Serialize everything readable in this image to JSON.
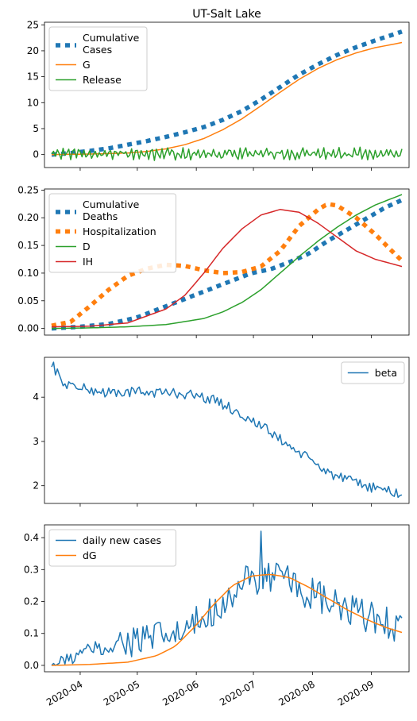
{
  "chart_data": [
    {
      "type": "line",
      "title": "UT-Salt Lake",
      "xlabel": "",
      "ylabel": "",
      "ylim": [
        -2.5,
        25.5
      ],
      "yticks": [
        0,
        5,
        10,
        15,
        20,
        25
      ],
      "legend_position": "upper-left",
      "series": [
        {
          "name": "Cumulative\nCases",
          "style": "dotted-thick",
          "color": "#1f77b4",
          "points": [
            [
              0,
              0
            ],
            [
              10,
              0.3
            ],
            [
              20,
              0.7
            ],
            [
              30,
              1.2
            ],
            [
              40,
              1.9
            ],
            [
              50,
              2.6
            ],
            [
              60,
              3.4
            ],
            [
              70,
              4.3
            ],
            [
              80,
              5.3
            ],
            [
              90,
              6.7
            ],
            [
              100,
              8.4
            ],
            [
              110,
              10.6
            ],
            [
              120,
              13.0
            ],
            [
              130,
              15.4
            ],
            [
              140,
              17.4
            ],
            [
              150,
              19.2
            ],
            [
              160,
              20.7
            ],
            [
              170,
              22.0
            ],
            [
              180,
              23.2
            ],
            [
              184,
              23.7
            ]
          ]
        },
        {
          "name": "G",
          "style": "solid",
          "color": "#ff7f0e",
          "points": [
            [
              0,
              0
            ],
            [
              20,
              0.1
            ],
            [
              40,
              0.3
            ],
            [
              50,
              0.6
            ],
            [
              60,
              1.1
            ],
            [
              70,
              1.9
            ],
            [
              80,
              3.1
            ],
            [
              90,
              4.8
            ],
            [
              100,
              6.9
            ],
            [
              110,
              9.4
            ],
            [
              120,
              12.0
            ],
            [
              130,
              14.5
            ],
            [
              140,
              16.6
            ],
            [
              150,
              18.3
            ],
            [
              160,
              19.6
            ],
            [
              170,
              20.6
            ],
            [
              180,
              21.3
            ],
            [
              184,
              21.6
            ]
          ]
        },
        {
          "name": "Release",
          "style": "solid",
          "color": "#2ca02c",
          "generated": "noise",
          "center": 0.15,
          "amplitude": 1.1,
          "n": 185
        }
      ]
    },
    {
      "type": "line",
      "title": "",
      "ylim": [
        -0.012,
        0.252
      ],
      "yticks": [
        0.0,
        0.05,
        0.1,
        0.15,
        0.2,
        0.25
      ],
      "legend_position": "upper-left",
      "series": [
        {
          "name": "Cumulative\nDeaths",
          "style": "dotted-thick",
          "color": "#1f77b4",
          "points": [
            [
              0,
              0
            ],
            [
              15,
              0.003
            ],
            [
              30,
              0.008
            ],
            [
              45,
              0.02
            ],
            [
              60,
              0.04
            ],
            [
              75,
              0.06
            ],
            [
              90,
              0.08
            ],
            [
              105,
              0.1
            ],
            [
              115,
              0.107
            ],
            [
              125,
              0.12
            ],
            [
              135,
              0.135
            ],
            [
              145,
              0.158
            ],
            [
              155,
              0.178
            ],
            [
              165,
              0.198
            ],
            [
              175,
              0.218
            ],
            [
              184,
              0.232
            ]
          ]
        },
        {
          "name": "Hospitalization",
          "style": "dotted-thick",
          "color": "#ff7f0e",
          "points": [
            [
              0,
              0.005
            ],
            [
              10,
              0.012
            ],
            [
              20,
              0.04
            ],
            [
              30,
              0.07
            ],
            [
              40,
              0.095
            ],
            [
              50,
              0.108
            ],
            [
              60,
              0.115
            ],
            [
              70,
              0.113
            ],
            [
              80,
              0.105
            ],
            [
              90,
              0.1
            ],
            [
              100,
              0.102
            ],
            [
              110,
              0.112
            ],
            [
              120,
              0.14
            ],
            [
              130,
              0.185
            ],
            [
              140,
              0.215
            ],
            [
              145,
              0.225
            ],
            [
              150,
              0.222
            ],
            [
              160,
              0.2
            ],
            [
              170,
              0.17
            ],
            [
              184,
              0.122
            ]
          ]
        },
        {
          "name": "D",
          "style": "solid",
          "color": "#2ca02c",
          "points": [
            [
              0,
              0
            ],
            [
              20,
              0.001
            ],
            [
              40,
              0.003
            ],
            [
              60,
              0.007
            ],
            [
              80,
              0.018
            ],
            [
              90,
              0.03
            ],
            [
              100,
              0.047
            ],
            [
              110,
              0.07
            ],
            [
              120,
              0.1
            ],
            [
              130,
              0.13
            ],
            [
              140,
              0.158
            ],
            [
              150,
              0.183
            ],
            [
              160,
              0.205
            ],
            [
              170,
              0.223
            ],
            [
              184,
              0.242
            ]
          ]
        },
        {
          "name": "IH",
          "style": "solid",
          "color": "#d62728",
          "points": [
            [
              0,
              0.003
            ],
            [
              20,
              0.004
            ],
            [
              40,
              0.01
            ],
            [
              60,
              0.035
            ],
            [
              70,
              0.06
            ],
            [
              80,
              0.1
            ],
            [
              90,
              0.145
            ],
            [
              100,
              0.18
            ],
            [
              110,
              0.205
            ],
            [
              120,
              0.215
            ],
            [
              130,
              0.21
            ],
            [
              140,
              0.19
            ],
            [
              150,
              0.165
            ],
            [
              160,
              0.14
            ],
            [
              170,
              0.125
            ],
            [
              184,
              0.112
            ]
          ]
        }
      ]
    },
    {
      "type": "line",
      "title": "",
      "ylim": [
        1.6,
        4.9
      ],
      "yticks": [
        2,
        3,
        4
      ],
      "legend_position": "upper-right",
      "series": [
        {
          "name": "beta",
          "style": "solid",
          "color": "#1f77b4",
          "generated": "noise-trend",
          "amplitude": 0.12,
          "n": 185,
          "trend": [
            [
              0,
              4.8
            ],
            [
              5,
              4.35
            ],
            [
              15,
              4.2
            ],
            [
              30,
              4.1
            ],
            [
              50,
              4.12
            ],
            [
              70,
              4.08
            ],
            [
              80,
              4.0
            ],
            [
              90,
              3.85
            ],
            [
              100,
              3.6
            ],
            [
              110,
              3.35
            ],
            [
              120,
              3.05
            ],
            [
              130,
              2.75
            ],
            [
              140,
              2.45
            ],
            [
              150,
              2.2
            ],
            [
              160,
              2.05
            ],
            [
              170,
              1.95
            ],
            [
              180,
              1.85
            ],
            [
              184,
              1.78
            ]
          ]
        }
      ]
    },
    {
      "type": "line",
      "title": "",
      "ylim": [
        -0.02,
        0.44
      ],
      "yticks": [
        0.0,
        0.1,
        0.2,
        0.3,
        0.4
      ],
      "x_tick_labels": [
        "2020-04",
        "2020-05",
        "2020-06",
        "2020-07",
        "2020-08",
        "2020-09"
      ],
      "legend_position": "upper-left",
      "series": [
        {
          "name": "daily new cases",
          "style": "solid",
          "color": "#1f77b4",
          "generated": "noise-trend",
          "amplitude": 0.055,
          "n": 185,
          "peak": [
            110,
            0.42
          ],
          "trend": [
            [
              0,
              0
            ],
            [
              10,
              0.02
            ],
            [
              20,
              0.05
            ],
            [
              30,
              0.07
            ],
            [
              50,
              0.08
            ],
            [
              70,
              0.1
            ],
            [
              80,
              0.15
            ],
            [
              90,
              0.2
            ],
            [
              100,
              0.25
            ],
            [
              110,
              0.28
            ],
            [
              120,
              0.27
            ],
            [
              130,
              0.24
            ],
            [
              140,
              0.21
            ],
            [
              150,
              0.18
            ],
            [
              160,
              0.16
            ],
            [
              170,
              0.15
            ],
            [
              184,
              0.12
            ]
          ]
        },
        {
          "name": "dG",
          "style": "solid",
          "color": "#ff7f0e",
          "points": [
            [
              0,
              0
            ],
            [
              20,
              0.003
            ],
            [
              40,
              0.01
            ],
            [
              55,
              0.03
            ],
            [
              65,
              0.06
            ],
            [
              75,
              0.12
            ],
            [
              85,
              0.19
            ],
            [
              95,
              0.25
            ],
            [
              105,
              0.28
            ],
            [
              115,
              0.285
            ],
            [
              125,
              0.275
            ],
            [
              135,
              0.245
            ],
            [
              145,
              0.21
            ],
            [
              155,
              0.175
            ],
            [
              165,
              0.145
            ],
            [
              175,
              0.12
            ],
            [
              184,
              0.103
            ]
          ]
        }
      ]
    }
  ]
}
